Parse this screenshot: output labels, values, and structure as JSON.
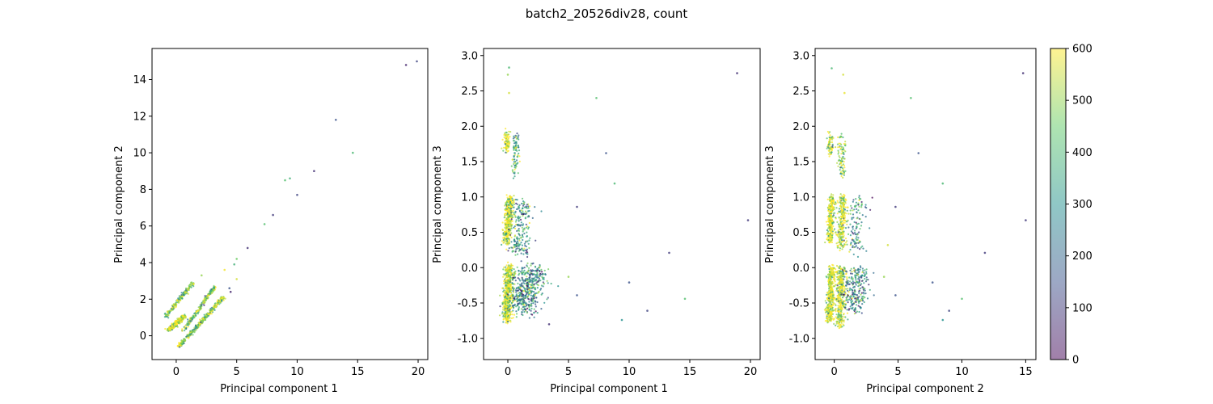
{
  "chart_data": {
    "suptitle": "batch2_20526div28, count",
    "colorbar": {
      "colormap": "viridis",
      "alpha": 0.5,
      "range": [
        0,
        600
      ],
      "ticks": [
        0,
        100,
        200,
        300,
        400,
        500,
        600
      ],
      "colors": [
        "#440154",
        "#3b528b",
        "#21908d",
        "#5dc963",
        "#fde725"
      ]
    },
    "charts": [
      {
        "type": "scatter",
        "xlabel": "Principal component 1",
        "ylabel": "Principal component 2",
        "xlim": [
          -2.0,
          20.8
        ],
        "ylim": [
          -1.3,
          15.7
        ],
        "xticks": [
          0,
          5,
          10,
          15,
          20
        ],
        "yticks": [
          0,
          2,
          4,
          6,
          8,
          10,
          12,
          14
        ],
        "clusters": [
          {
            "from": [
              -0.9,
              1.05
            ],
            "to": [
              1.4,
              2.9
            ],
            "width": 0.25,
            "n": 200,
            "count_bias": 480
          },
          {
            "from": [
              -0.6,
              0.3
            ],
            "to": [
              0.7,
              1.1
            ],
            "width": 0.3,
            "n": 400,
            "count_bias": 580
          },
          {
            "from": [
              0.6,
              0.3
            ],
            "to": [
              3.2,
              2.7
            ],
            "width": 0.2,
            "n": 220,
            "count_bias": 450
          },
          {
            "from": [
              0.2,
              -0.6
            ],
            "to": [
              3.9,
              2.1
            ],
            "width": 0.25,
            "n": 380,
            "count_bias": 500
          }
        ],
        "points": [
          {
            "x": 19.0,
            "y": 14.8,
            "c": 60
          },
          {
            "x": 19.9,
            "y": 15.0,
            "c": 120
          },
          {
            "x": 13.2,
            "y": 11.8,
            "c": 150
          },
          {
            "x": 14.6,
            "y": 10.0,
            "c": 400
          },
          {
            "x": 11.4,
            "y": 9.0,
            "c": 80
          },
          {
            "x": 9.0,
            "y": 8.5,
            "c": 420
          },
          {
            "x": 9.4,
            "y": 8.6,
            "c": 380
          },
          {
            "x": 10.0,
            "y": 7.7,
            "c": 120
          },
          {
            "x": 8.0,
            "y": 6.6,
            "c": 100
          },
          {
            "x": 7.3,
            "y": 6.1,
            "c": 420
          },
          {
            "x": 5.9,
            "y": 4.8,
            "c": 80
          },
          {
            "x": 5.0,
            "y": 4.2,
            "c": 460
          },
          {
            "x": 4.8,
            "y": 3.9,
            "c": 380
          },
          {
            "x": 5.0,
            "y": 3.1,
            "c": 560
          },
          {
            "x": 4.5,
            "y": 2.4,
            "c": 60
          },
          {
            "x": 4.4,
            "y": 2.6,
            "c": 150
          },
          {
            "x": 2.1,
            "y": 3.3,
            "c": 500
          },
          {
            "x": 4.0,
            "y": 3.6,
            "c": 590
          }
        ]
      },
      {
        "type": "scatter",
        "xlabel": "Principal component 1",
        "ylabel": "Principal component 3",
        "xlim": [
          -2.0,
          20.8
        ],
        "ylim": [
          -1.3,
          3.1
        ],
        "xticks": [
          0,
          5,
          10,
          15,
          20
        ],
        "yticks": [
          -1.0,
          -0.5,
          0.0,
          0.5,
          1.0,
          1.5,
          2.0,
          2.5,
          3.0
        ],
        "clusters": [
          {
            "from": [
              -0.1,
              1.65
            ],
            "to": [
              -0.1,
              1.9
            ],
            "width": 0.3,
            "n": 80,
            "count_bias": 570
          },
          {
            "from": [
              0.6,
              1.3
            ],
            "to": [
              0.7,
              1.9
            ],
            "width": 0.35,
            "n": 80,
            "count_bias": 350
          },
          {
            "from": [
              -0.1,
              0.35
            ],
            "to": [
              0.2,
              1.0
            ],
            "width": 0.4,
            "n": 350,
            "count_bias": 580
          },
          {
            "from": [
              0.8,
              0.2
            ],
            "to": [
              1.2,
              0.95
            ],
            "width": 1.2,
            "n": 220,
            "count_bias": 300
          },
          {
            "from": [
              -0.1,
              -0.75
            ],
            "to": [
              0.1,
              0.0
            ],
            "width": 0.45,
            "n": 550,
            "count_bias": 580
          },
          {
            "from": [
              1.0,
              -0.6
            ],
            "to": [
              2.2,
              0.0
            ],
            "width": 2.2,
            "n": 500,
            "count_bias": 280
          }
        ],
        "points": [
          {
            "x": 0.1,
            "y": 2.83,
            "c": 400
          },
          {
            "x": 0.0,
            "y": 2.73,
            "c": 500
          },
          {
            "x": 0.1,
            "y": 2.47,
            "c": 560
          },
          {
            "x": 7.3,
            "y": 2.4,
            "c": 420
          },
          {
            "x": 18.9,
            "y": 2.75,
            "c": 80
          },
          {
            "x": 8.1,
            "y": 1.62,
            "c": 150
          },
          {
            "x": 8.8,
            "y": 1.19,
            "c": 400
          },
          {
            "x": 5.7,
            "y": 0.86,
            "c": 100
          },
          {
            "x": 19.8,
            "y": 0.67,
            "c": 100
          },
          {
            "x": 13.3,
            "y": 0.21,
            "c": 100
          },
          {
            "x": 10.0,
            "y": -0.21,
            "c": 150
          },
          {
            "x": 11.5,
            "y": -0.61,
            "c": 120
          },
          {
            "x": 14.6,
            "y": -0.44,
            "c": 420
          },
          {
            "x": 9.4,
            "y": -0.74,
            "c": 300
          },
          {
            "x": 5.7,
            "y": -0.39,
            "c": 150
          },
          {
            "x": 5.0,
            "y": -0.13,
            "c": 500
          },
          {
            "x": 3.4,
            "y": -0.8,
            "c": 80
          }
        ]
      },
      {
        "type": "scatter",
        "xlabel": "Principal component 2",
        "ylabel": "Principal component 3",
        "xlim": [
          -1.5,
          15.8
        ],
        "ylim": [
          -1.3,
          3.1
        ],
        "xticks": [
          0,
          5,
          10,
          15
        ],
        "yticks": [
          -1.0,
          -0.5,
          0.0,
          0.5,
          1.0,
          1.5,
          2.0,
          2.5,
          3.0
        ],
        "clusters": [
          {
            "from": [
              -0.3,
              1.6
            ],
            "to": [
              -0.3,
              1.9
            ],
            "width": 0.25,
            "n": 70,
            "count_bias": 570
          },
          {
            "from": [
              0.6,
              1.3
            ],
            "to": [
              0.6,
              1.85
            ],
            "width": 0.35,
            "n": 90,
            "count_bias": 520
          },
          {
            "from": [
              -0.4,
              0.35
            ],
            "to": [
              -0.2,
              1.0
            ],
            "width": 0.3,
            "n": 260,
            "count_bias": 580
          },
          {
            "from": [
              0.5,
              0.3
            ],
            "to": [
              0.7,
              1.0
            ],
            "width": 0.45,
            "n": 260,
            "count_bias": 560
          },
          {
            "from": [
              1.6,
              0.2
            ],
            "to": [
              1.8,
              1.0
            ],
            "width": 0.8,
            "n": 120,
            "count_bias": 300
          },
          {
            "from": [
              -0.4,
              -0.75
            ],
            "to": [
              -0.2,
              0.0
            ],
            "width": 0.35,
            "n": 380,
            "count_bias": 580
          },
          {
            "from": [
              0.4,
              -0.8
            ],
            "to": [
              0.6,
              0.0
            ],
            "width": 0.5,
            "n": 380,
            "count_bias": 560
          },
          {
            "from": [
              1.5,
              -0.6
            ],
            "to": [
              1.9,
              0.0
            ],
            "width": 1.4,
            "n": 250,
            "count_bias": 280
          }
        ],
        "points": [
          {
            "x": -0.2,
            "y": 2.82,
            "c": 400
          },
          {
            "x": 0.7,
            "y": 2.73,
            "c": 560
          },
          {
            "x": 0.8,
            "y": 2.47,
            "c": 580
          },
          {
            "x": 6.0,
            "y": 2.4,
            "c": 420
          },
          {
            "x": 14.8,
            "y": 2.75,
            "c": 80
          },
          {
            "x": 6.6,
            "y": 1.62,
            "c": 150
          },
          {
            "x": 8.5,
            "y": 1.19,
            "c": 400
          },
          {
            "x": 4.8,
            "y": 0.86,
            "c": 100
          },
          {
            "x": 15.0,
            "y": 0.67,
            "c": 100
          },
          {
            "x": 11.8,
            "y": 0.21,
            "c": 100
          },
          {
            "x": 7.7,
            "y": -0.21,
            "c": 150
          },
          {
            "x": 9.0,
            "y": -0.61,
            "c": 120
          },
          {
            "x": 10.0,
            "y": -0.44,
            "c": 420
          },
          {
            "x": 8.5,
            "y": -0.74,
            "c": 300
          },
          {
            "x": 4.8,
            "y": -0.39,
            "c": 150
          },
          {
            "x": 4.2,
            "y": 0.32,
            "c": 560
          },
          {
            "x": 3.9,
            "y": -0.13,
            "c": 500
          }
        ]
      }
    ]
  }
}
